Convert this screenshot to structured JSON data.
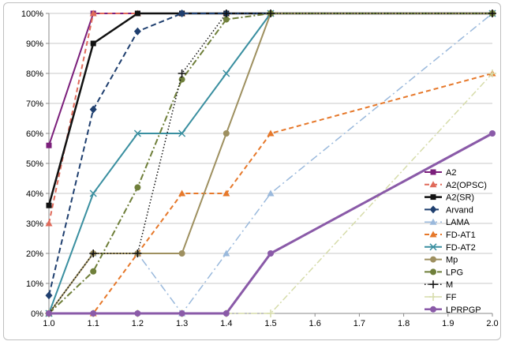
{
  "chart_data": {
    "type": "line",
    "x": [
      1.0,
      1.1,
      1.2,
      1.3,
      1.4,
      1.5,
      2.0
    ],
    "xlim": [
      1.0,
      2.0
    ],
    "ylim": [
      0,
      100
    ],
    "xticks": [
      "1.0",
      "1.1",
      "1.2",
      "1.3",
      "1.4",
      "1.5",
      "1.6",
      "1.7",
      "1.8",
      "1.9",
      "2.0"
    ],
    "yticks": [
      "0%",
      "10%",
      "20%",
      "30%",
      "40%",
      "50%",
      "60%",
      "70%",
      "80%",
      "90%",
      "100%"
    ],
    "grid": "horizontal",
    "legend_position": "right",
    "series": [
      {
        "name": "A2",
        "values": [
          56,
          100,
          100,
          100,
          100,
          100,
          100
        ],
        "color": "#7b1f7b",
        "dash": "",
        "marker": "square",
        "width": 2
      },
      {
        "name": "A2(OPSC)",
        "values": [
          30,
          100,
          100,
          100,
          100,
          100,
          100
        ],
        "color": "#e06a5a",
        "dash": "6,4",
        "marker": "triangle",
        "width": 2
      },
      {
        "name": "A2(SR)",
        "values": [
          36,
          90,
          100,
          100,
          100,
          100,
          100
        ],
        "color": "#111111",
        "dash": "",
        "marker": "square",
        "width": 2.5
      },
      {
        "name": "Arvand",
        "values": [
          6,
          68,
          94,
          100,
          100,
          100,
          100
        ],
        "color": "#1f3f6f",
        "dash": "7,4",
        "marker": "diamond",
        "width": 2
      },
      {
        "name": "LAMA",
        "values": [
          0,
          20,
          20,
          0,
          20,
          40,
          100
        ],
        "color": "#9ab9dc",
        "dash": "10,4,2,4",
        "marker": "triangle",
        "width": 1.5
      },
      {
        "name": "FD-AT1",
        "values": [
          0,
          0,
          20,
          40,
          40,
          60,
          80
        ],
        "color": "#e6782a",
        "dash": "6,4",
        "marker": "triangle",
        "width": 2
      },
      {
        "name": "FD-AT2",
        "values": [
          0,
          40,
          60,
          60,
          80,
          100,
          100
        ],
        "color": "#3a8fa0",
        "dash": "",
        "marker": "x",
        "width": 2
      },
      {
        "name": "Mp",
        "values": [
          0,
          20,
          20,
          20,
          60,
          100,
          100
        ],
        "color": "#9e9060",
        "dash": "",
        "marker": "circle",
        "width": 2
      },
      {
        "name": "LPG",
        "values": [
          0,
          14,
          42,
          78,
          98,
          100,
          100
        ],
        "color": "#6f7f3a",
        "dash": "8,3,2,3",
        "marker": "circle",
        "width": 2
      },
      {
        "name": "M",
        "values": [
          0,
          20,
          20,
          80,
          100,
          100,
          100
        ],
        "color": "#111111",
        "dash": "1.5,2.5",
        "marker": "plus",
        "width": 1.5
      },
      {
        "name": "FF",
        "values": [
          0,
          0,
          0,
          0,
          0,
          0,
          80
        ],
        "color": "#d6dcaa",
        "dash": "8,3,2,3",
        "marker": "plus",
        "width": 1.5
      },
      {
        "name": "LPRPGP",
        "values": [
          0,
          0,
          0,
          0,
          0,
          20,
          60
        ],
        "color": "#8a5aa8",
        "dash": "",
        "marker": "circle",
        "width": 3
      }
    ]
  }
}
